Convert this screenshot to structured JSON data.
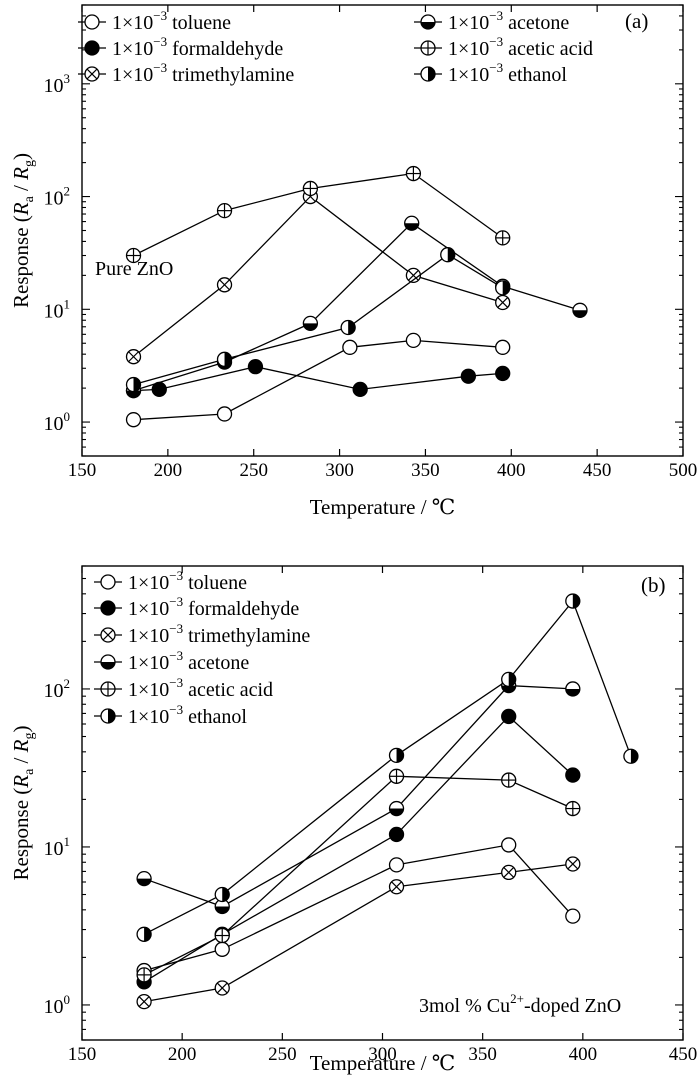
{
  "chart_data": [
    {
      "type": "scatter",
      "panel_label": "(a)",
      "annotation": "Pure ZnO",
      "xlabel": "Temperature / ℃",
      "ylabel_main": "Response (",
      "ylabel_ra": "R",
      "ylabel_ra_sub": "a",
      "ylabel_slash": " / ",
      "ylabel_rg": "R",
      "ylabel_rg_sub": "g",
      "ylabel_close": ")",
      "xlim": [
        150,
        500
      ],
      "ylim": [
        0.5,
        5000
      ],
      "yscale": "log",
      "xticks": [
        "150",
        "200",
        "250",
        "300",
        "350",
        "400",
        "450",
        "500"
      ],
      "yticks": [
        {
          "base": "10",
          "exp": "0",
          "value": 1
        },
        {
          "base": "10",
          "exp": "1",
          "value": 10
        },
        {
          "base": "10",
          "exp": "2",
          "value": 100
        },
        {
          "base": "10",
          "exp": "3",
          "value": 1000
        }
      ],
      "legend_columns": 2,
      "series": [
        {
          "name_prefix": "1×10",
          "name_exp": "−3",
          "name_text": " toluene",
          "marker": "open",
          "x": [
            180,
            233,
            306,
            343,
            395
          ],
          "y": [
            1.05,
            1.18,
            4.6,
            5.3,
            4.6
          ]
        },
        {
          "name_prefix": "1×10",
          "name_exp": "−3",
          "name_text": " formaldehyde",
          "marker": "filled",
          "x": [
            180,
            195,
            251,
            312,
            375,
            395
          ],
          "y": [
            1.9,
            1.95,
            3.1,
            1.95,
            2.55,
            2.7
          ]
        },
        {
          "name_prefix": "1×10",
          "name_exp": "−3",
          "name_text": " trimethylamine",
          "marker": "crossx",
          "x": [
            180,
            233,
            283,
            343,
            395
          ],
          "y": [
            3.8,
            16.5,
            100,
            20,
            11.5
          ]
        },
        {
          "name_prefix": "1×10",
          "name_exp": "−3",
          "name_text": " acetone",
          "marker": "halfbottom",
          "x": [
            180,
            233,
            283,
            342,
            395,
            440
          ],
          "y": [
            1.9,
            3.4,
            7.5,
            58,
            16,
            9.8
          ]
        },
        {
          "name_prefix": "1×10",
          "name_exp": "−3",
          "name_text": " acetic acid",
          "marker": "plus",
          "x": [
            180,
            233,
            283,
            343,
            395
          ],
          "y": [
            30,
            75,
            118,
            160,
            43
          ]
        },
        {
          "name_prefix": "1×10",
          "name_exp": "−3",
          "name_text": " ethanol",
          "marker": "halfright",
          "x": [
            180,
            233,
            305,
            363,
            395
          ],
          "y": [
            2.15,
            3.6,
            6.9,
            30.5,
            15.5
          ]
        }
      ]
    },
    {
      "type": "scatter",
      "panel_label": "(b)",
      "annotation_prefix": "3mol % Cu",
      "annotation_sup": "2+",
      "annotation_suffix": "-doped ZnO",
      "xlabel": "Temperature / ℃",
      "ylabel_main": "Response (",
      "ylabel_ra": "R",
      "ylabel_ra_sub": "a",
      "ylabel_slash": " / ",
      "ylabel_rg": "R",
      "ylabel_rg_sub": "g",
      "ylabel_close": ")",
      "xlim": [
        150,
        450
      ],
      "ylim": [
        0.6,
        600
      ],
      "yscale": "log",
      "xticks": [
        "150",
        "200",
        "250",
        "300",
        "350",
        "400",
        "450"
      ],
      "yticks": [
        {
          "base": "10",
          "exp": "0",
          "value": 1
        },
        {
          "base": "10",
          "exp": "1",
          "value": 10
        },
        {
          "base": "10",
          "exp": "2",
          "value": 100
        }
      ],
      "legend_columns": 1,
      "series": [
        {
          "name_prefix": "1×10",
          "name_exp": "−3",
          "name_text": " toluene",
          "marker": "open",
          "x": [
            181,
            220,
            307,
            363,
            395
          ],
          "y": [
            1.65,
            2.25,
            7.7,
            10.3,
            3.65
          ]
        },
        {
          "name_prefix": "1×10",
          "name_exp": "−3",
          "name_text": " formaldehyde",
          "marker": "filled",
          "x": [
            181,
            220,
            307,
            363,
            395
          ],
          "y": [
            1.4,
            2.8,
            12,
            67,
            28.5
          ]
        },
        {
          "name_prefix": "1×10",
          "name_exp": "−3",
          "name_text": " trimethylamine",
          "marker": "crossx",
          "x": [
            181,
            220,
            307,
            363,
            395
          ],
          "y": [
            1.05,
            1.28,
            5.6,
            6.9,
            7.8
          ]
        },
        {
          "name_prefix": "1×10",
          "name_exp": "−3",
          "name_text": " acetone",
          "marker": "halfbottom",
          "x": [
            181,
            220,
            307,
            363,
            395
          ],
          "y": [
            6.3,
            4.2,
            17.5,
            105,
            100
          ]
        },
        {
          "name_prefix": "1×10",
          "name_exp": "−3",
          "name_text": " acetic acid",
          "marker": "plus",
          "x": [
            181,
            220,
            307,
            363,
            395
          ],
          "y": [
            1.55,
            2.75,
            28,
            26.5,
            17.5
          ]
        },
        {
          "name_prefix": "1×10",
          "name_exp": "−3",
          "name_text": " ethanol",
          "marker": "halfright",
          "x": [
            181,
            220,
            307,
            363,
            395,
            424
          ],
          "y": [
            2.8,
            5,
            38,
            115,
            360,
            37.5
          ]
        }
      ]
    }
  ]
}
